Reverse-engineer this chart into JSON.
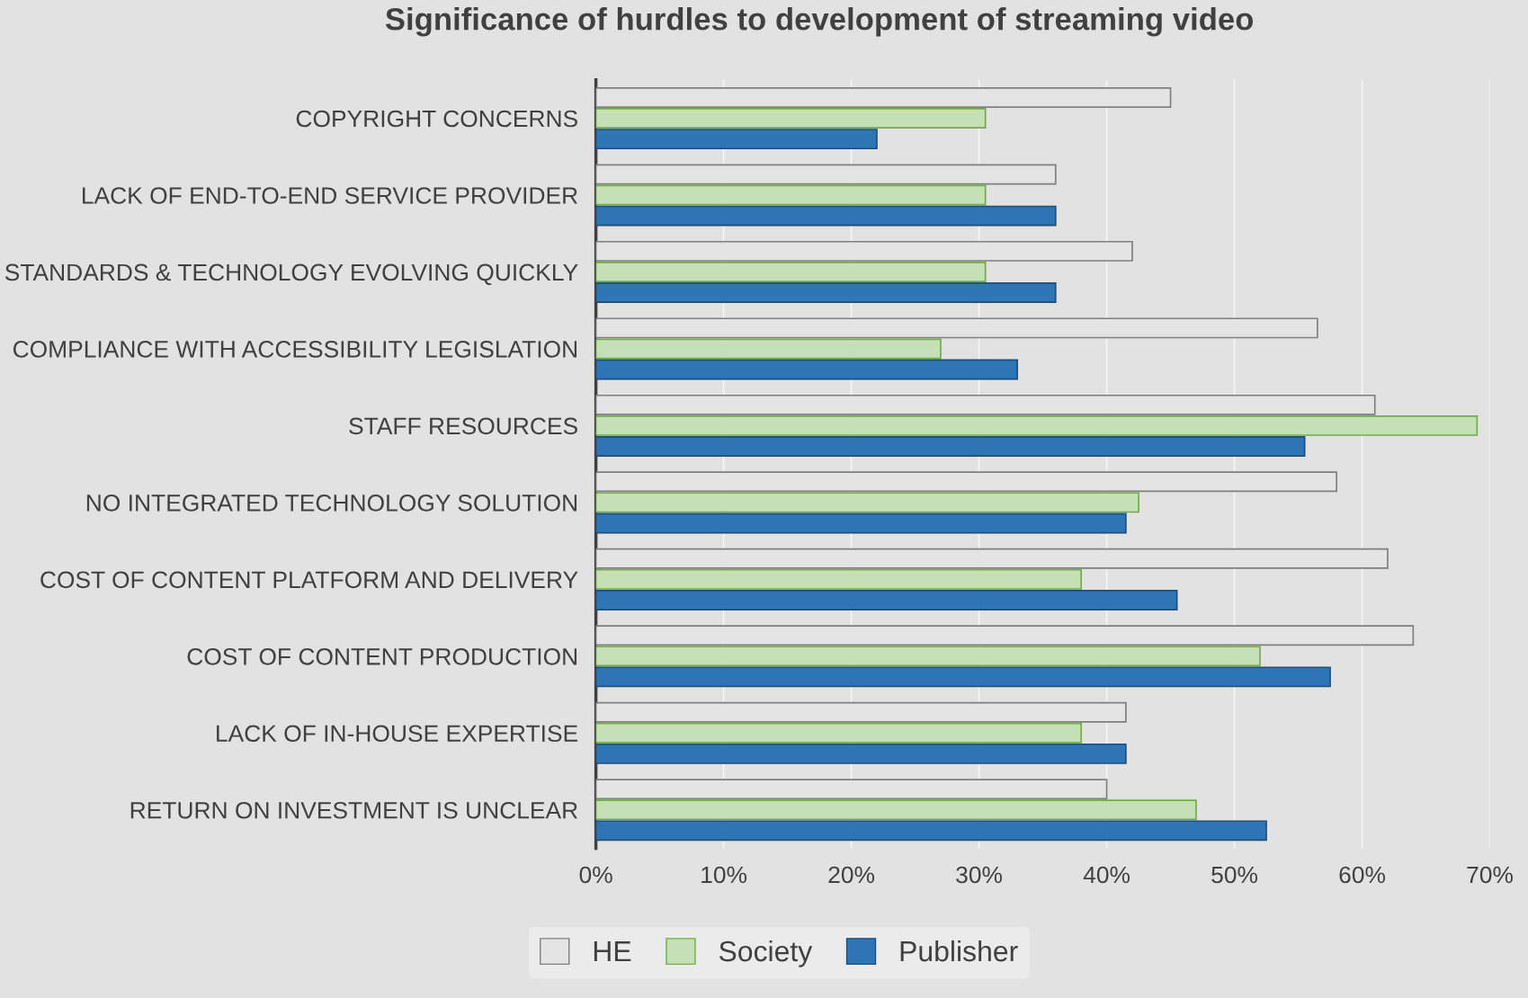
{
  "chart_data": {
    "type": "bar",
    "orientation": "horizontal",
    "title": "Significance of hurdles to development of streaming video",
    "categories": [
      "COPYRIGHT CONCERNS",
      "LACK OF END-TO-END SERVICE PROVIDER",
      "STANDARDS & TECHNOLOGY EVOLVING QUICKLY",
      "COMPLIANCE WITH ACCESSIBILITY LEGISLATION",
      "STAFF RESOURCES",
      "NO INTEGRATED TECHNOLOGY SOLUTION",
      "COST OF CONTENT PLATFORM AND DELIVERY",
      "COST OF CONTENT PRODUCTION",
      "LACK OF IN-HOUSE EXPERTISE",
      "RETURN ON INVESTMENT IS UNCLEAR"
    ],
    "series": [
      {
        "name": "HE",
        "color": "#e4e4e4",
        "values": [
          45,
          36,
          42,
          56.5,
          61,
          58,
          62,
          64,
          41.5,
          40
        ]
      },
      {
        "name": "Society",
        "color": "#c5e0b4",
        "values": [
          30.5,
          30.5,
          30.5,
          27,
          69,
          42.5,
          38,
          52,
          38,
          47
        ]
      },
      {
        "name": "Publisher",
        "color": "#2e75b6",
        "values": [
          22,
          36,
          36,
          33,
          55.5,
          41.5,
          45.5,
          57.5,
          41.5,
          52.5
        ]
      }
    ],
    "xlim": [
      0,
      70
    ],
    "xticks": [
      {
        "value": 0,
        "label": "0%"
      },
      {
        "value": 10,
        "label": "10%"
      },
      {
        "value": 20,
        "label": "20%"
      },
      {
        "value": 30,
        "label": "30%"
      },
      {
        "value": 40,
        "label": "40%"
      },
      {
        "value": 50,
        "label": "50%"
      },
      {
        "value": 60,
        "label": "60%"
      },
      {
        "value": 70,
        "label": "70%"
      }
    ],
    "grid": "x",
    "legend": "bottom"
  }
}
